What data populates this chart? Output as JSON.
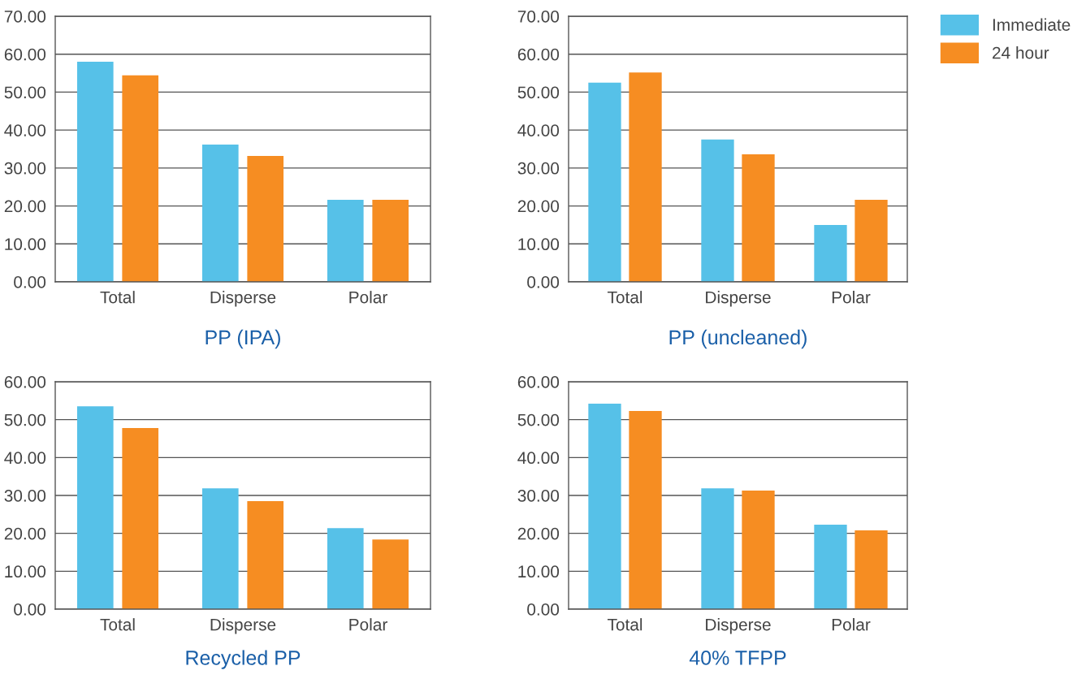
{
  "chart_data": [
    {
      "type": "bar",
      "title": "PP (IPA)",
      "categories": [
        "Total",
        "Disperse",
        "Polar"
      ],
      "series": [
        {
          "name": "Immediate",
          "color": "#56c1e8",
          "values": [
            58.0,
            36.2,
            21.6
          ]
        },
        {
          "name": "24 hour",
          "color": "#f68d22",
          "values": [
            54.4,
            33.2,
            21.6
          ]
        }
      ],
      "ylim": [
        0,
        70
      ],
      "yticks": [
        {
          "value": 0,
          "label": "0.00"
        },
        {
          "value": 10,
          "label": "10.00"
        },
        {
          "value": 20,
          "label": "20.00"
        },
        {
          "value": 30,
          "label": "30.00"
        },
        {
          "value": 40,
          "label": "40.00"
        },
        {
          "value": 50,
          "label": "50.00"
        },
        {
          "value": 60,
          "label": "60.00"
        },
        {
          "value": 70,
          "label": "70.00"
        }
      ],
      "grid": "y",
      "legend": "top right"
    },
    {
      "type": "bar",
      "title": "PP (uncleaned)",
      "categories": [
        "Total",
        "Disperse",
        "Polar"
      ],
      "series": [
        {
          "color": "#56c1e8",
          "values": [
            52.5,
            37.5,
            15.0
          ]
        },
        {
          "color": "#f68d22",
          "values": [
            55.2,
            33.6,
            21.6
          ]
        }
      ],
      "ylim": [
        0,
        70
      ],
      "yticks": [
        {
          "value": 0,
          "label": "0.00"
        },
        {
          "value": 10,
          "label": "10.00"
        },
        {
          "value": 20,
          "label": "20.00"
        },
        {
          "value": 30,
          "label": "30.00"
        },
        {
          "value": 40,
          "label": "40.00"
        },
        {
          "value": 50,
          "label": "50.00"
        },
        {
          "value": 60,
          "label": "60.00"
        },
        {
          "value": 70,
          "label": "70.00"
        }
      ],
      "grid": "y"
    },
    {
      "type": "bar",
      "title": "Recycled PP",
      "categories": [
        "Total",
        "Disperse",
        "Polar"
      ],
      "series": [
        {
          "color": "#56c1e8",
          "values": [
            53.5,
            31.9,
            21.4
          ]
        },
        {
          "color": "#f68d22",
          "values": [
            47.8,
            28.5,
            18.4
          ]
        }
      ],
      "ylim": [
        0,
        60
      ],
      "yticks": [
        {
          "value": 0,
          "label": "0.00"
        },
        {
          "value": 10,
          "label": "10.00"
        },
        {
          "value": 20,
          "label": "20.00"
        },
        {
          "value": 30,
          "label": "30.00"
        },
        {
          "value": 40,
          "label": "40.00"
        },
        {
          "value": 50,
          "label": "50.00"
        },
        {
          "value": 60,
          "label": "60.00"
        }
      ],
      "grid": "y"
    },
    {
      "type": "bar",
      "title": "40% TFPP",
      "categories": [
        "Total",
        "Disperse",
        "Polar"
      ],
      "series": [
        {
          "color": "#56c1e8",
          "values": [
            54.2,
            31.9,
            22.3
          ]
        },
        {
          "color": "#f68d22",
          "values": [
            52.3,
            31.3,
            20.8
          ]
        }
      ],
      "ylim": [
        0,
        60
      ],
      "yticks": [
        {
          "value": 0,
          "label": "0.00"
        },
        {
          "value": 10,
          "label": "10.00"
        },
        {
          "value": 20,
          "label": "20.00"
        },
        {
          "value": 30,
          "label": "30.00"
        },
        {
          "value": 40,
          "label": "40.00"
        },
        {
          "value": 50,
          "label": "50.00"
        },
        {
          "value": 60,
          "label": "60.00"
        }
      ],
      "grid": "y"
    }
  ]
}
